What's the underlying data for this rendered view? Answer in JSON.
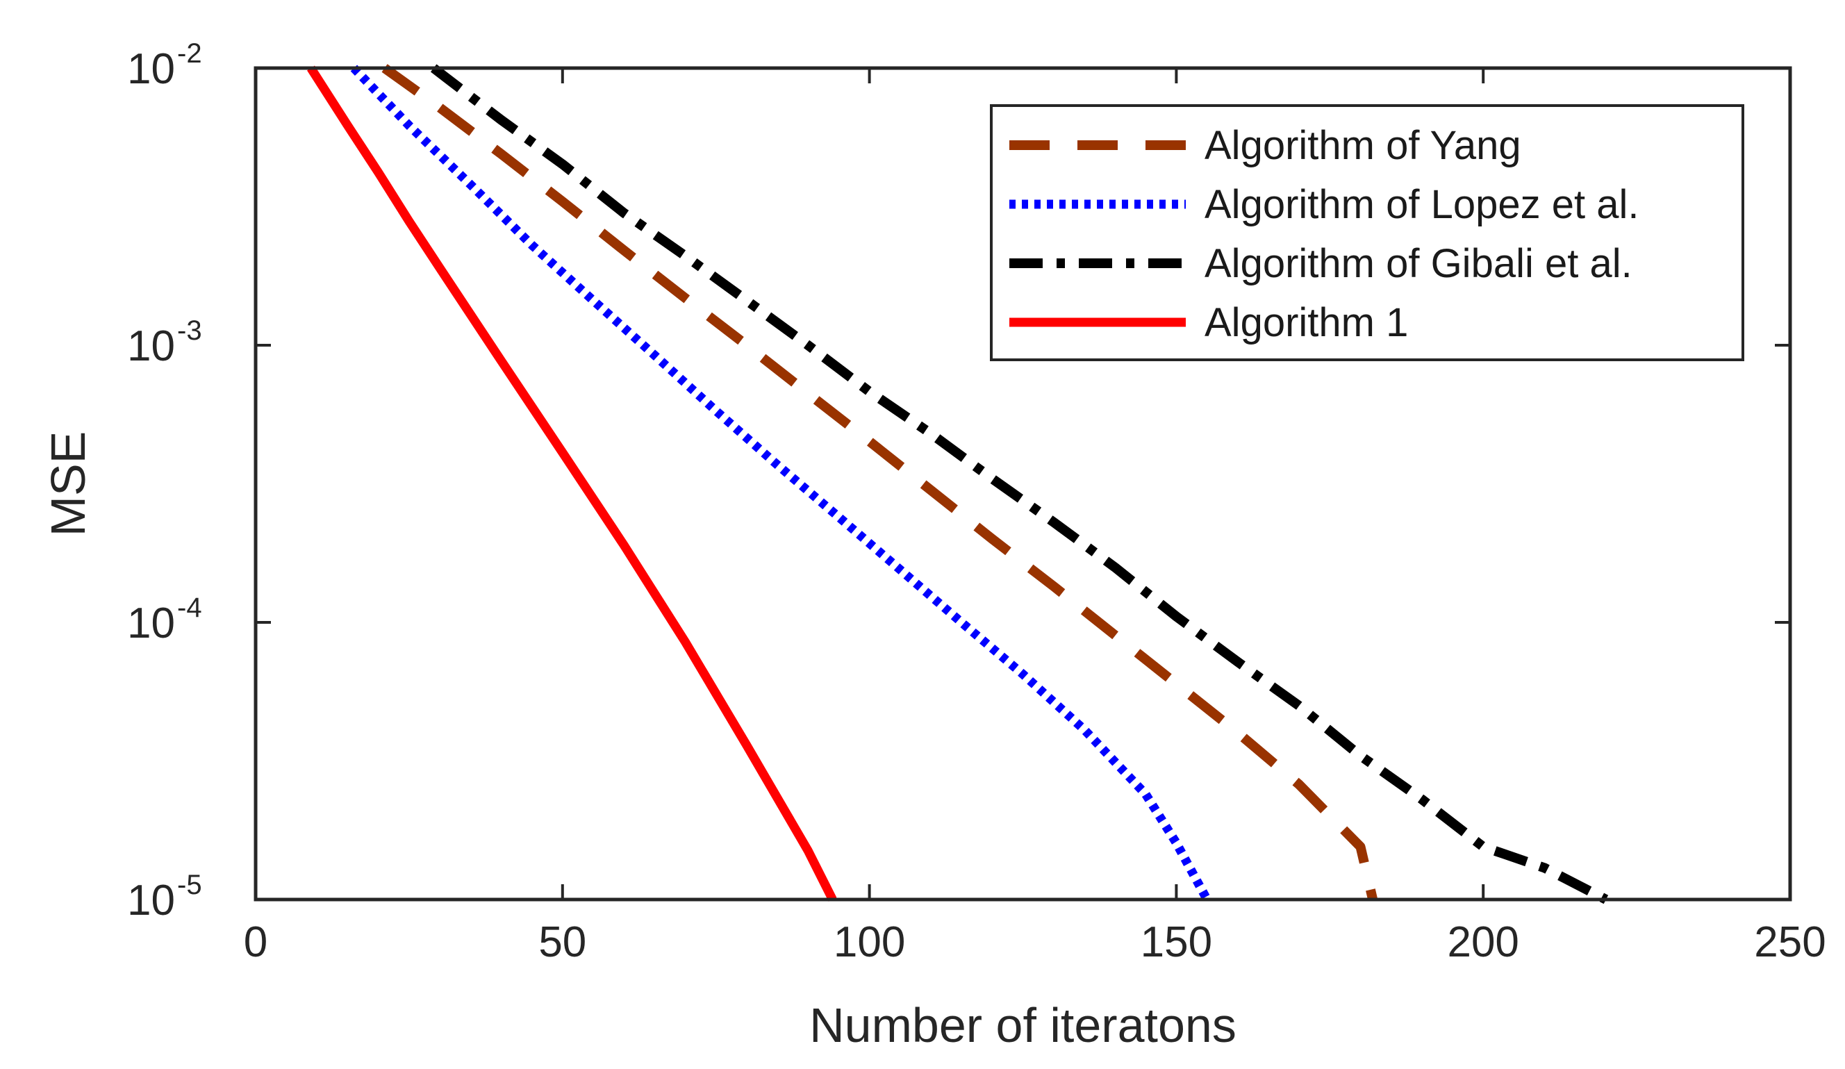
{
  "chart_data": {
    "type": "line",
    "title": "",
    "xlabel": "Number of iteratons",
    "ylabel": "MSE",
    "xlim": [
      0,
      250
    ],
    "ylim": [
      1e-05,
      0.01
    ],
    "yscale": "log",
    "xticks": [
      0,
      50,
      100,
      150,
      200,
      250
    ],
    "yticks": [
      {
        "value": 0.01,
        "base": "10",
        "exp": "-2"
      },
      {
        "value": 0.001,
        "base": "10",
        "exp": "-3"
      },
      {
        "value": 0.0001,
        "base": "10",
        "exp": "-4"
      },
      {
        "value": 1e-05,
        "base": "10",
        "exp": "-5"
      }
    ],
    "grid": false,
    "legend_position": "top-right",
    "series": [
      {
        "name": "Algorithm of Yang",
        "color": "#993300",
        "style": "dashed",
        "x": [
          21,
          30,
          40,
          50,
          60,
          70,
          80,
          90,
          100,
          110,
          120,
          130,
          140,
          150,
          160,
          170,
          180,
          182
        ],
        "y": [
          0.01,
          0.0072,
          0.0049,
          0.0033,
          0.0022,
          0.00148,
          0.001,
          0.00067,
          0.00045,
          0.0003,
          0.0002,
          0.000135,
          9e-05,
          6e-05,
          4e-05,
          2.6e-05,
          1.55e-05,
          1e-05
        ]
      },
      {
        "name": "Algorithm of Lopez et al.",
        "color": "#0000ff",
        "style": "dotted",
        "x": [
          16,
          25,
          35,
          45,
          55,
          65,
          75,
          85,
          95,
          105,
          115,
          125,
          135,
          145,
          150,
          155
        ],
        "y": [
          0.01,
          0.0062,
          0.0038,
          0.0023,
          0.00145,
          0.00092,
          0.00058,
          0.00037,
          0.00024,
          0.000155,
          0.0001,
          6.5e-05,
          4.1e-05,
          2.4e-05,
          1.6e-05,
          1e-05
        ]
      },
      {
        "name": "Algorithm of Gibali et al.",
        "color": "#000000",
        "style": "dashdot",
        "x": [
          29,
          40,
          50,
          60,
          70,
          80,
          90,
          100,
          110,
          120,
          130,
          140,
          150,
          160,
          170,
          180,
          190,
          200,
          210,
          220
        ],
        "y": [
          0.01,
          0.0065,
          0.0045,
          0.003,
          0.0021,
          0.00145,
          0.001,
          0.00068,
          0.00048,
          0.00033,
          0.00023,
          0.000158,
          0.000105,
          7.2e-05,
          5e-05,
          3.3e-05,
          2.3e-05,
          1.55e-05,
          1.3e-05,
          1e-05
        ]
      },
      {
        "name": "Algorithm 1",
        "color": "#ff0000",
        "style": "solid",
        "x": [
          9,
          15,
          20,
          25,
          30,
          40,
          50,
          60,
          70,
          80,
          90,
          94
        ],
        "y": [
          0.01,
          0.0062,
          0.0042,
          0.0028,
          0.0019,
          0.00088,
          0.00041,
          0.00019,
          8.5e-05,
          3.6e-05,
          1.5e-05,
          1e-05
        ]
      }
    ]
  }
}
